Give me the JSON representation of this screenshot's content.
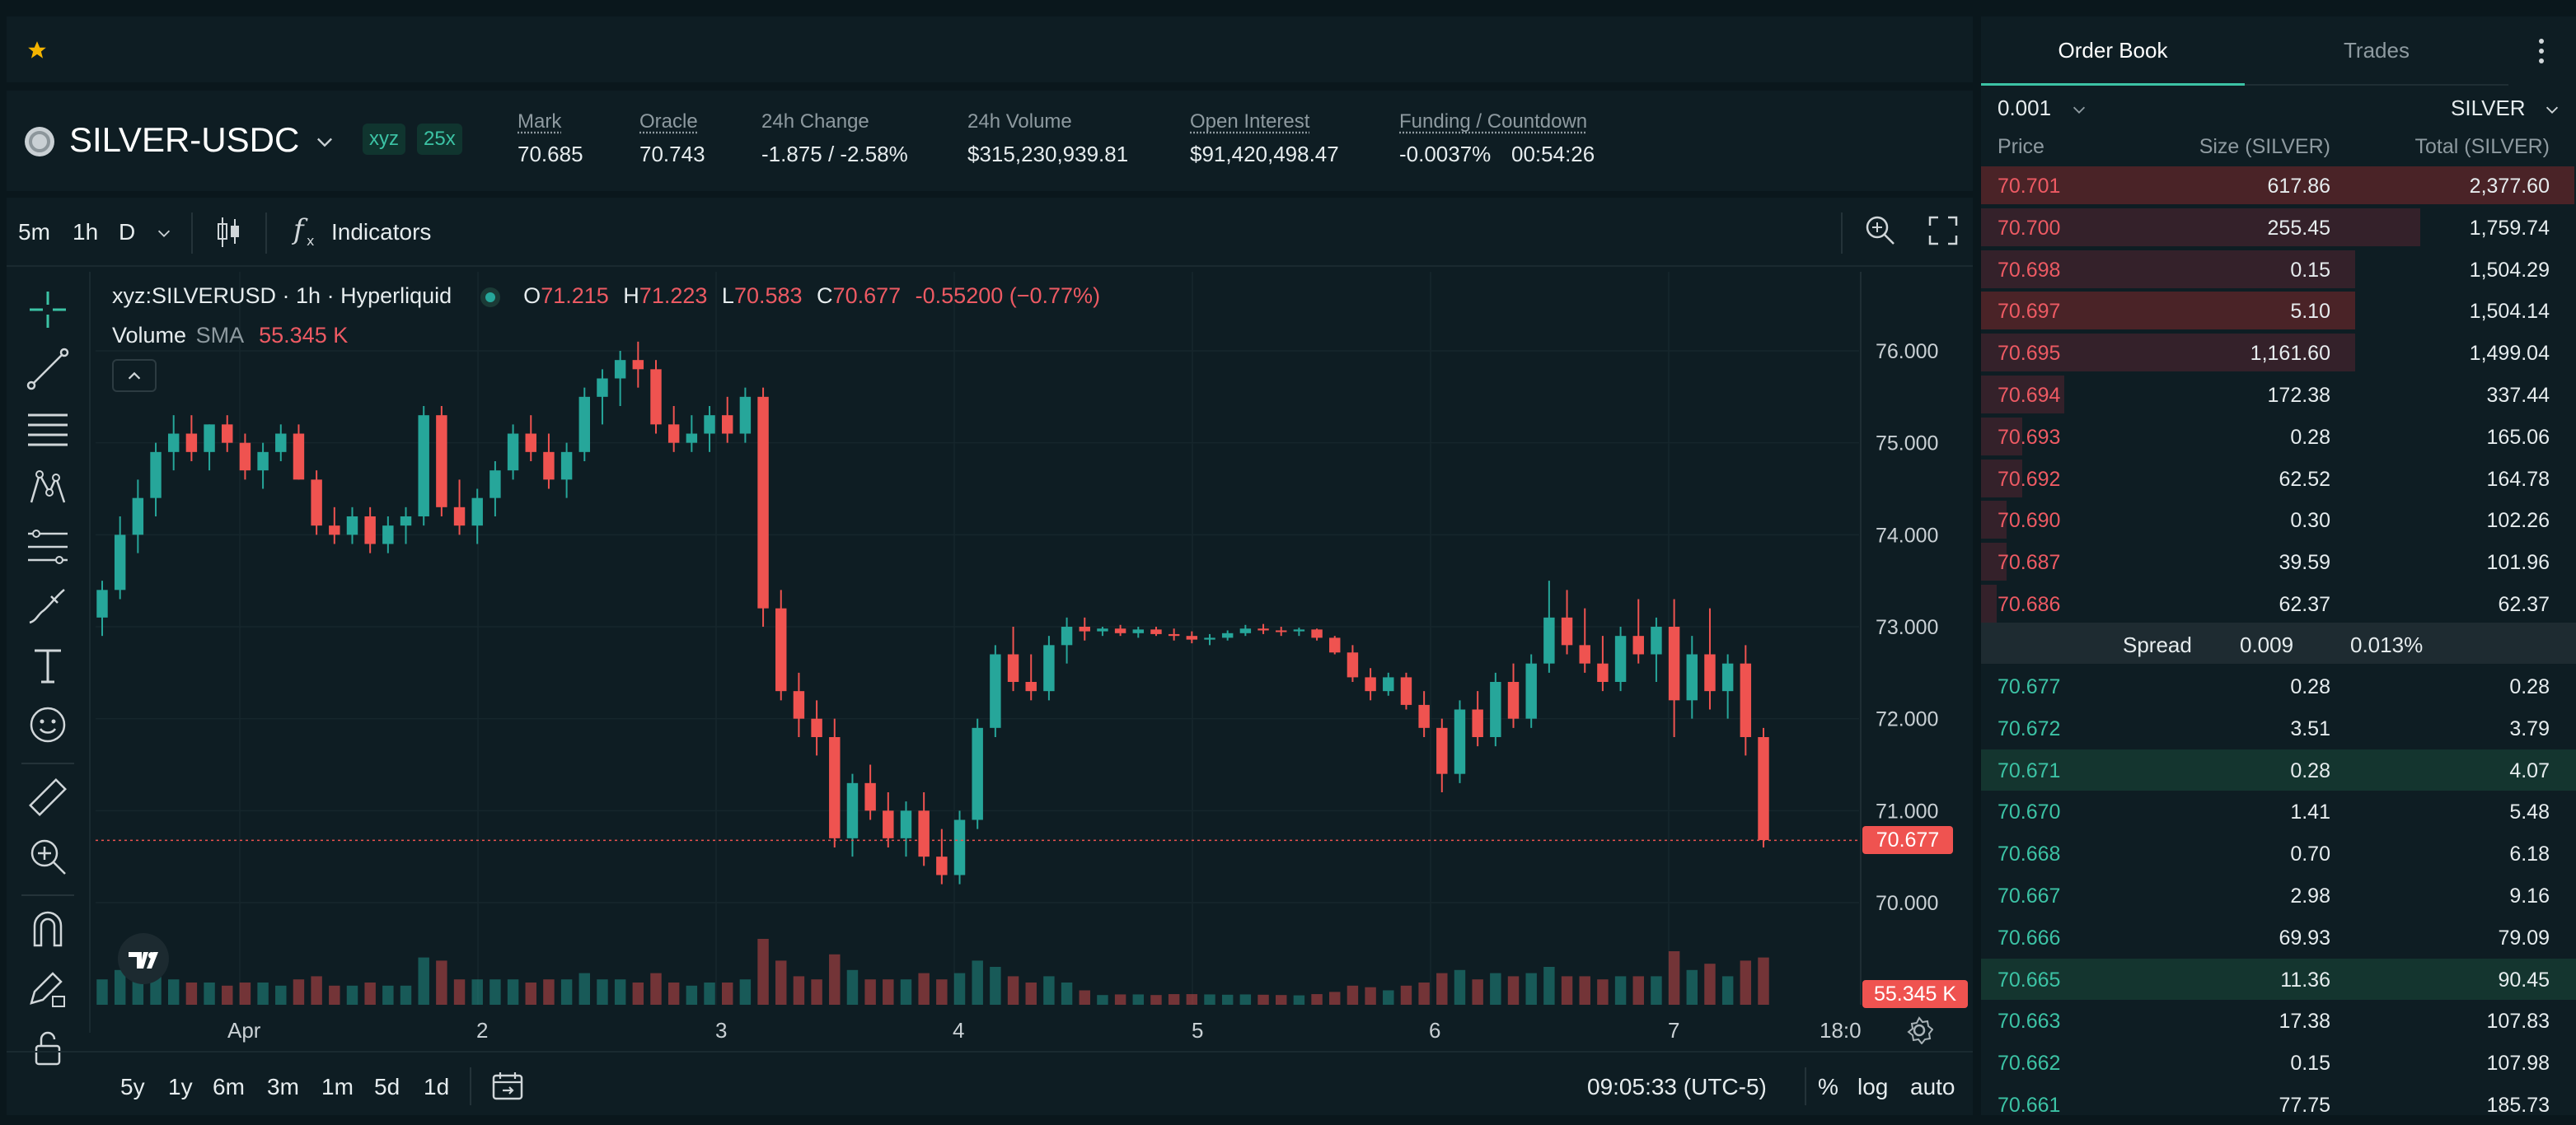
{
  "market": {
    "symbol": "SILVER-USDC",
    "dex_badge": "xyz",
    "leverage_badge": "25x",
    "stats": [
      {
        "label": "Mark",
        "value": "70.685",
        "tone": "neutral"
      },
      {
        "label": "Oracle",
        "value": "70.743",
        "tone": "neutral"
      },
      {
        "label": "24h Change",
        "value": "-1.875 / -2.58%",
        "tone": "red"
      },
      {
        "label": "24h Volume",
        "value": "$315,230,939.81",
        "tone": "neutral"
      },
      {
        "label": "Open Interest",
        "value": "$91,420,498.47",
        "tone": "neutral"
      },
      {
        "label": "Funding / Countdown",
        "value": "-0.0037%",
        "value2": "00:54:26",
        "tone": "green"
      }
    ]
  },
  "toolbar": {
    "intervals": [
      "5m",
      "1h",
      "D"
    ],
    "active_interval": "1h",
    "indicators_label": "Indicators"
  },
  "legend": {
    "title": "xyz:SILVERUSD · 1h · Hyperliquid",
    "o_label": "O",
    "o": "71.215",
    "h_label": "H",
    "h": "71.223",
    "l_label": "L",
    "l": "70.583",
    "c_label": "C",
    "c": "70.677",
    "change": "-0.55200 (−0.77%)",
    "volume_label": "Volume",
    "sma_label": "SMA",
    "volume_value": "55.345 K"
  },
  "chart_data": {
    "type": "candlestick",
    "price_ticks": [
      "76.000",
      "75.000",
      "74.000",
      "73.000",
      "72.000",
      "71.000",
      "70.000"
    ],
    "y_tick_values": [
      76,
      75,
      74,
      73,
      72,
      71,
      70
    ],
    "x_ticks": [
      "Apr",
      "2",
      "3",
      "4",
      "5",
      "6",
      "7",
      "18:0"
    ],
    "last_price_label": "70.677",
    "last_price": 70.677,
    "volume_label": "55.345 K",
    "ohlc_approx": [
      [
        73.1,
        73.5,
        72.9,
        73.4
      ],
      [
        73.4,
        74.2,
        73.3,
        74.0
      ],
      [
        74.0,
        74.6,
        73.8,
        74.4
      ],
      [
        74.4,
        75.0,
        74.2,
        74.9
      ],
      [
        74.9,
        75.3,
        74.7,
        75.1
      ],
      [
        75.1,
        75.3,
        74.8,
        74.9
      ],
      [
        74.9,
        75.2,
        74.7,
        75.2
      ],
      [
        75.2,
        75.3,
        74.9,
        75.0
      ],
      [
        75.0,
        75.1,
        74.6,
        74.7
      ],
      [
        74.7,
        75.0,
        74.5,
        74.9
      ],
      [
        74.9,
        75.2,
        74.8,
        75.1
      ],
      [
        75.1,
        75.2,
        74.6,
        74.6
      ],
      [
        74.6,
        74.7,
        74.0,
        74.1
      ],
      [
        74.1,
        74.3,
        73.9,
        74.0
      ],
      [
        74.0,
        74.3,
        73.9,
        74.2
      ],
      [
        74.2,
        74.3,
        73.8,
        73.9
      ],
      [
        73.9,
        74.2,
        73.8,
        74.1
      ],
      [
        74.1,
        74.3,
        73.9,
        74.2
      ],
      [
        74.2,
        75.4,
        74.1,
        75.3
      ],
      [
        75.3,
        75.4,
        74.2,
        74.3
      ],
      [
        74.3,
        74.6,
        74.0,
        74.1
      ],
      [
        74.1,
        74.5,
        73.9,
        74.4
      ],
      [
        74.4,
        74.8,
        74.2,
        74.7
      ],
      [
        74.7,
        75.2,
        74.6,
        75.1
      ],
      [
        75.1,
        75.3,
        74.8,
        74.9
      ],
      [
        74.9,
        75.1,
        74.5,
        74.6
      ],
      [
        74.6,
        75.0,
        74.4,
        74.9
      ],
      [
        74.9,
        75.6,
        74.8,
        75.5
      ],
      [
        75.5,
        75.8,
        75.2,
        75.7
      ],
      [
        75.7,
        76.0,
        75.4,
        75.9
      ],
      [
        75.9,
        76.1,
        75.6,
        75.8
      ],
      [
        75.8,
        75.9,
        75.1,
        75.2
      ],
      [
        75.2,
        75.4,
        74.9,
        75.0
      ],
      [
        75.0,
        75.3,
        74.9,
        75.1
      ],
      [
        75.1,
        75.4,
        74.9,
        75.3
      ],
      [
        75.3,
        75.5,
        75.0,
        75.1
      ],
      [
        75.1,
        75.6,
        75.0,
        75.5
      ],
      [
        75.5,
        75.6,
        73.0,
        73.2
      ],
      [
        73.2,
        73.4,
        72.2,
        72.3
      ],
      [
        72.3,
        72.5,
        71.8,
        72.0
      ],
      [
        72.0,
        72.2,
        71.6,
        71.8
      ],
      [
        71.8,
        72.0,
        70.6,
        70.7
      ],
      [
        70.7,
        71.4,
        70.5,
        71.3
      ],
      [
        71.3,
        71.5,
        70.9,
        71.0
      ],
      [
        71.0,
        71.2,
        70.6,
        70.7
      ],
      [
        70.7,
        71.1,
        70.5,
        71.0
      ],
      [
        71.0,
        71.2,
        70.4,
        70.5
      ],
      [
        70.5,
        70.8,
        70.2,
        70.3
      ],
      [
        70.3,
        71.0,
        70.2,
        70.9
      ],
      [
        70.9,
        72.0,
        70.8,
        71.9
      ],
      [
        71.9,
        72.8,
        71.8,
        72.7
      ],
      [
        72.7,
        73.0,
        72.3,
        72.4
      ],
      [
        72.4,
        72.7,
        72.2,
        72.3
      ],
      [
        72.3,
        72.9,
        72.2,
        72.8
      ],
      [
        72.8,
        73.1,
        72.6,
        73.0
      ],
      [
        73.0,
        73.1,
        72.85,
        72.95
      ],
      [
        72.95,
        73.0,
        72.9,
        72.98
      ],
      [
        72.98,
        73.02,
        72.9,
        72.93
      ],
      [
        72.93,
        73.0,
        72.88,
        72.97
      ],
      [
        72.97,
        73.0,
        72.9,
        72.92
      ],
      [
        72.92,
        72.98,
        72.85,
        72.9
      ],
      [
        72.9,
        72.95,
        72.82,
        72.86
      ],
      [
        72.86,
        72.92,
        72.8,
        72.88
      ],
      [
        72.88,
        72.96,
        72.85,
        72.93
      ],
      [
        72.93,
        73.02,
        72.9,
        72.98
      ],
      [
        72.98,
        73.03,
        72.92,
        72.96
      ],
      [
        72.96,
        73.0,
        72.9,
        72.95
      ],
      [
        72.95,
        72.99,
        72.9,
        72.97
      ],
      [
        72.97,
        72.98,
        72.85,
        72.88
      ],
      [
        72.88,
        72.9,
        72.7,
        72.72
      ],
      [
        72.72,
        72.8,
        72.4,
        72.45
      ],
      [
        72.45,
        72.55,
        72.2,
        72.3
      ],
      [
        72.3,
        72.5,
        72.25,
        72.45
      ],
      [
        72.45,
        72.5,
        72.1,
        72.15
      ],
      [
        72.15,
        72.3,
        71.8,
        71.9
      ],
      [
        71.9,
        72.0,
        71.2,
        71.4
      ],
      [
        71.4,
        72.2,
        71.3,
        72.1
      ],
      [
        72.1,
        72.3,
        71.7,
        71.8
      ],
      [
        71.8,
        72.5,
        71.7,
        72.4
      ],
      [
        72.4,
        72.6,
        71.9,
        72.0
      ],
      [
        72.0,
        72.7,
        71.9,
        72.6
      ],
      [
        72.6,
        73.5,
        72.5,
        73.1
      ],
      [
        73.1,
        73.4,
        72.7,
        72.8
      ],
      [
        72.8,
        73.2,
        72.5,
        72.6
      ],
      [
        72.6,
        72.9,
        72.3,
        72.4
      ],
      [
        72.4,
        73.0,
        72.3,
        72.9
      ],
      [
        72.9,
        73.3,
        72.6,
        72.7
      ],
      [
        72.7,
        73.1,
        72.4,
        73.0
      ],
      [
        73.0,
        73.3,
        71.8,
        72.2
      ],
      [
        72.2,
        72.9,
        72.0,
        72.7
      ],
      [
        72.7,
        73.2,
        72.1,
        72.3
      ],
      [
        72.3,
        72.7,
        72.0,
        72.6
      ],
      [
        72.6,
        72.8,
        71.6,
        71.8
      ],
      [
        71.8,
        71.9,
        70.6,
        70.68
      ]
    ]
  },
  "drawing_tools": [
    "crosshair-icon",
    "trend-line-icon",
    "horizontal-lines-icon",
    "pattern-icon",
    "fib-icon",
    "brush-icon",
    "text-icon",
    "emoji-icon",
    "ruler-icon",
    "zoom-in-icon",
    "magnet-icon",
    "pencil-lock-icon",
    "lock-icon"
  ],
  "bottom": {
    "ranges": [
      "5y",
      "1y",
      "6m",
      "3m",
      "1m",
      "5d",
      "1d"
    ],
    "time": "09:05:33 (UTC-5)",
    "percent": "%",
    "log": "log",
    "auto": "auto"
  },
  "orderbook": {
    "tabs": [
      "Order Book",
      "Trades"
    ],
    "active_tab": "Order Book",
    "tick_size": "0.001",
    "unit": "SILVER",
    "headers": [
      "Price",
      "Size (SILVER)",
      "Total (SILVER)"
    ],
    "asks": [
      {
        "price": "70.701",
        "size": "617.86",
        "total": "2,377.60",
        "depth": 1.0
      },
      {
        "price": "70.700",
        "size": "255.45",
        "total": "1,759.74",
        "depth": 0.74
      },
      {
        "price": "70.698",
        "size": "0.15",
        "total": "1,504.29",
        "depth": 0.63
      },
      {
        "price": "70.697",
        "size": "5.10",
        "total": "1,504.14",
        "depth": 0.63
      },
      {
        "price": "70.695",
        "size": "1,161.60",
        "total": "1,499.04",
        "depth": 0.63
      },
      {
        "price": "70.694",
        "size": "172.38",
        "total": "337.44",
        "depth": 0.14
      },
      {
        "price": "70.693",
        "size": "0.28",
        "total": "165.06",
        "depth": 0.07
      },
      {
        "price": "70.692",
        "size": "62.52",
        "total": "164.78",
        "depth": 0.07
      },
      {
        "price": "70.690",
        "size": "0.30",
        "total": "102.26",
        "depth": 0.043
      },
      {
        "price": "70.687",
        "size": "39.59",
        "total": "101.96",
        "depth": 0.043
      },
      {
        "price": "70.686",
        "size": "62.37",
        "total": "62.37",
        "depth": 0.026
      }
    ],
    "spread_label": "Spread",
    "spread_value": "0.009",
    "spread_pct": "0.013%",
    "bids": [
      {
        "price": "70.677",
        "size": "0.28",
        "total": "0.28",
        "depth": 0.0
      },
      {
        "price": "70.672",
        "size": "3.51",
        "total": "3.79",
        "depth": 0.0
      },
      {
        "price": "70.671",
        "size": "0.28",
        "total": "4.07",
        "depth": 0.0
      },
      {
        "price": "70.670",
        "size": "1.41",
        "total": "5.48",
        "depth": 0.0
      },
      {
        "price": "70.668",
        "size": "0.70",
        "total": "6.18",
        "depth": 0.0
      },
      {
        "price": "70.667",
        "size": "2.98",
        "total": "9.16",
        "depth": 0.0
      },
      {
        "price": "70.666",
        "size": "69.93",
        "total": "79.09",
        "depth": 0.0
      },
      {
        "price": "70.665",
        "size": "11.36",
        "total": "90.45",
        "depth": 0.0
      },
      {
        "price": "70.663",
        "size": "17.38",
        "total": "107.83",
        "depth": 0.0
      },
      {
        "price": "70.662",
        "size": "0.15",
        "total": "107.98",
        "depth": 0.0
      },
      {
        "price": "70.661",
        "size": "77.75",
        "total": "185.73",
        "depth": 0.0
      }
    ]
  },
  "colors": {
    "up": "#26a69a",
    "down": "#ef5350",
    "accent_green": "#3cc3a5",
    "accent_red": "#ed5a63"
  }
}
